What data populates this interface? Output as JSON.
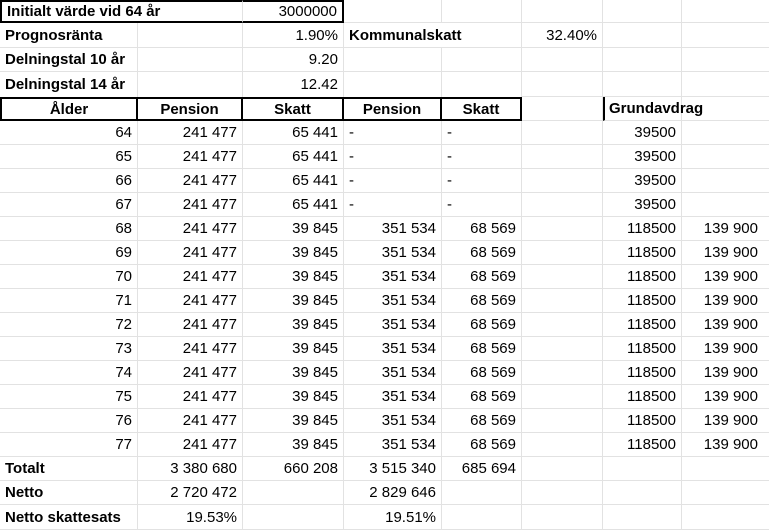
{
  "parameters": {
    "initial_value": {
      "label": "Initialt värde vid 64 år",
      "value": "3000000"
    },
    "prognosranta": {
      "label": "Prognosränta",
      "value": "1.90%"
    },
    "kommunalskatt": {
      "label": "Kommunalskatt",
      "value": "32.40%"
    },
    "delningstal_10": {
      "label": "Delningstal 10 år",
      "value": "9.20"
    },
    "delningstal_14": {
      "label": "Delningstal 14 år",
      "value": "12.42"
    }
  },
  "table": {
    "headers": {
      "alder": "Ålder",
      "pension_a": "Pension",
      "skatt_a": "Skatt",
      "pension_b": "Pension",
      "skatt_b": "Skatt",
      "grundavdrag": "Grundavdrag"
    },
    "rows": [
      {
        "alder": "64",
        "pension_a": "241 477",
        "skatt_a": "65 441",
        "pension_b": "-",
        "skatt_b": "-",
        "grundavdrag": "39500",
        "extra": ""
      },
      {
        "alder": "65",
        "pension_a": "241 477",
        "skatt_a": "65 441",
        "pension_b": "-",
        "skatt_b": "-",
        "grundavdrag": "39500",
        "extra": ""
      },
      {
        "alder": "66",
        "pension_a": "241 477",
        "skatt_a": "65 441",
        "pension_b": "-",
        "skatt_b": "-",
        "grundavdrag": "39500",
        "extra": ""
      },
      {
        "alder": "67",
        "pension_a": "241 477",
        "skatt_a": "65 441",
        "pension_b": "-",
        "skatt_b": "-",
        "grundavdrag": "39500",
        "extra": ""
      },
      {
        "alder": "68",
        "pension_a": "241 477",
        "skatt_a": "39 845",
        "pension_b": "351 534",
        "skatt_b": "68 569",
        "grundavdrag": "118500",
        "extra": "139 900"
      },
      {
        "alder": "69",
        "pension_a": "241 477",
        "skatt_a": "39 845",
        "pension_b": "351 534",
        "skatt_b": "68 569",
        "grundavdrag": "118500",
        "extra": "139 900"
      },
      {
        "alder": "70",
        "pension_a": "241 477",
        "skatt_a": "39 845",
        "pension_b": "351 534",
        "skatt_b": "68 569",
        "grundavdrag": "118500",
        "extra": "139 900"
      },
      {
        "alder": "71",
        "pension_a": "241 477",
        "skatt_a": "39 845",
        "pension_b": "351 534",
        "skatt_b": "68 569",
        "grundavdrag": "118500",
        "extra": "139 900"
      },
      {
        "alder": "72",
        "pension_a": "241 477",
        "skatt_a": "39 845",
        "pension_b": "351 534",
        "skatt_b": "68 569",
        "grundavdrag": "118500",
        "extra": "139 900"
      },
      {
        "alder": "73",
        "pension_a": "241 477",
        "skatt_a": "39 845",
        "pension_b": "351 534",
        "skatt_b": "68 569",
        "grundavdrag": "118500",
        "extra": "139 900"
      },
      {
        "alder": "74",
        "pension_a": "241 477",
        "skatt_a": "39 845",
        "pension_b": "351 534",
        "skatt_b": "68 569",
        "grundavdrag": "118500",
        "extra": "139 900"
      },
      {
        "alder": "75",
        "pension_a": "241 477",
        "skatt_a": "39 845",
        "pension_b": "351 534",
        "skatt_b": "68 569",
        "grundavdrag": "118500",
        "extra": "139 900"
      },
      {
        "alder": "76",
        "pension_a": "241 477",
        "skatt_a": "39 845",
        "pension_b": "351 534",
        "skatt_b": "68 569",
        "grundavdrag": "118500",
        "extra": "139 900"
      },
      {
        "alder": "77",
        "pension_a": "241 477",
        "skatt_a": "39 845",
        "pension_b": "351 534",
        "skatt_b": "68 569",
        "grundavdrag": "118500",
        "extra": "139 900"
      }
    ],
    "totalt": {
      "label": "Totalt",
      "pension_a": "3 380 680",
      "skatt_a": "660 208",
      "pension_b": "3 515 340",
      "skatt_b": "685 694"
    },
    "netto": {
      "label": "Netto",
      "pension_a": "2 720 472",
      "pension_b": "2 829 646"
    },
    "netto_skattesats": {
      "label": "Netto skattesats",
      "pension_a": "19.53%",
      "pension_b": "19.51%"
    }
  },
  "colors": {
    "gridline": "#e2e2e2",
    "border": "#000000",
    "background": "#ffffff",
    "text": "#000000"
  }
}
